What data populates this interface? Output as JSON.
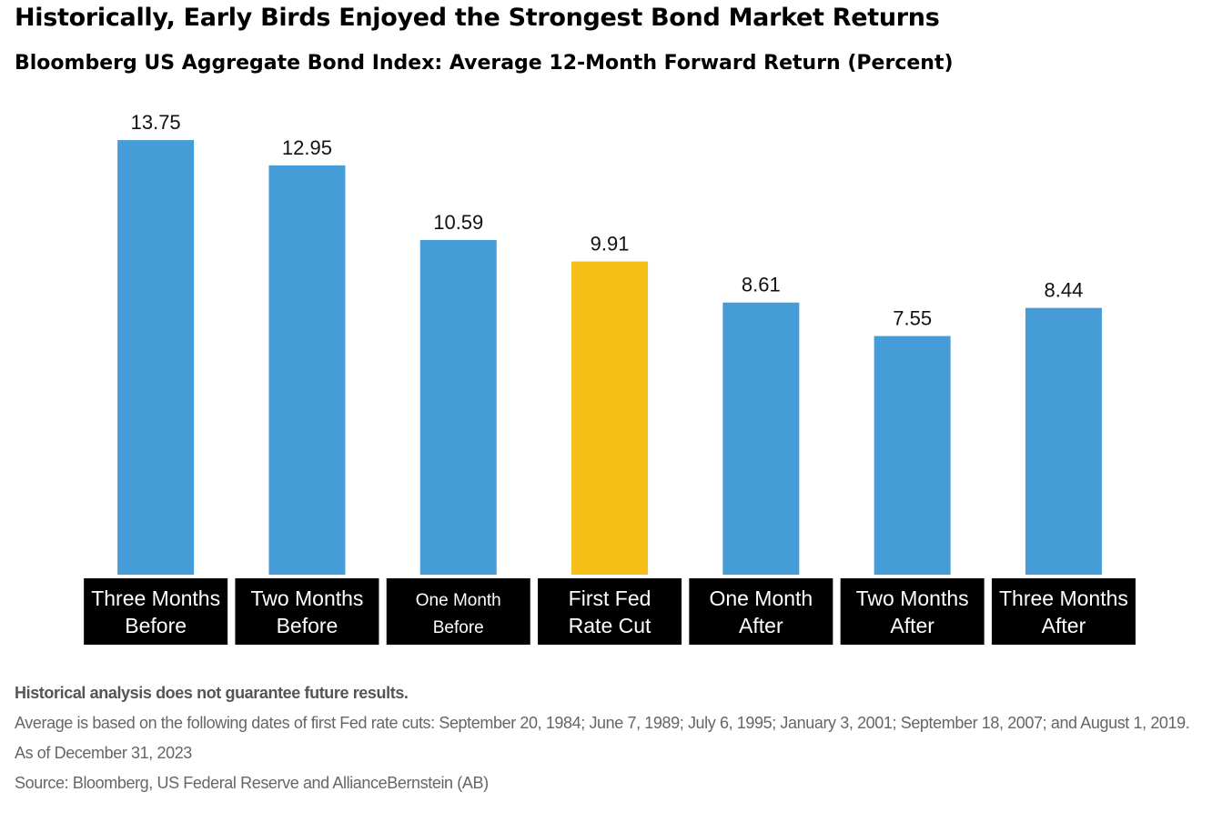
{
  "title": "Historically, Early Birds Enjoyed the Strongest Bond Market Returns",
  "subtitle": "Bloomberg US Aggregate Bond Index: Average 12-Month Forward Return (Percent)",
  "colors": {
    "bar_default": "#469CD7",
    "bar_highlight": "#F5BF18",
    "label_background": "#000000",
    "label_text": "#ffffff",
    "value_text": "#111111"
  },
  "chart_data": {
    "type": "bar",
    "categories": [
      [
        "Three Months",
        "Before"
      ],
      [
        "Two Months",
        "Before"
      ],
      [
        "One  Month",
        "Before"
      ],
      [
        "First Fed",
        "Rate Cut"
      ],
      [
        "One Month",
        "After"
      ],
      [
        "Two Months",
        "After"
      ],
      [
        "Three Months",
        "After"
      ]
    ],
    "values": [
      13.75,
      12.95,
      10.59,
      9.91,
      8.61,
      7.55,
      8.44
    ],
    "value_labels": [
      "13.75",
      "12.95",
      "10.59",
      "9.91",
      "8.61",
      "7.55",
      "8.44"
    ],
    "highlight_index": 3,
    "ylim": [
      0,
      14.5
    ],
    "grid": false,
    "legend": "none"
  },
  "footnotes": {
    "disclaimer": "Historical analysis does not guarantee future results.",
    "note": "Average is based on the following dates of first Fed rate cuts: September 20, 1984; June 7, 1989; July 6, 1995; January 3, 2001; September 18, 2007; and August 1, 2019.",
    "as_of": "As of December 31, 2023",
    "source": "Source: Bloomberg, US Federal Reserve and AllianceBernstein (AB)"
  }
}
